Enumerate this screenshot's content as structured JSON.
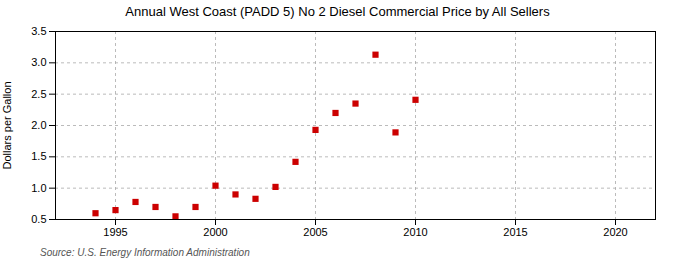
{
  "chart_data": {
    "type": "scatter",
    "title": "Annual West Coast (PADD 5) No 2 Diesel Commercial Price by All Sellers",
    "ylabel": "Dollars per Gallon",
    "annotations": [
      "Source: U.S. Energy Information Administration"
    ],
    "x": [
      1994,
      1995,
      1996,
      1997,
      1998,
      1999,
      2000,
      2001,
      2002,
      2003,
      2004,
      2005,
      2006,
      2007,
      2008,
      2009,
      2010
    ],
    "values": [
      0.6,
      0.65,
      0.78,
      0.7,
      0.55,
      0.7,
      1.04,
      0.9,
      0.83,
      1.02,
      1.42,
      1.93,
      2.2,
      2.35,
      3.13,
      1.89,
      2.41
    ],
    "color": "#cc0000",
    "marker": "square",
    "xlim": [
      1992,
      2022
    ],
    "xticks": [
      1995,
      2000,
      2005,
      2010,
      2015,
      2020
    ],
    "ylim": [
      0.5,
      3.5
    ],
    "yticks": [
      0.5,
      {
        "value": 1,
        "label": "1.0"
      },
      1.5,
      {
        "value": 2,
        "label": "2.0"
      },
      2.5,
      {
        "value": 3,
        "label": "3.0"
      },
      3.5
    ],
    "grid": true
  }
}
